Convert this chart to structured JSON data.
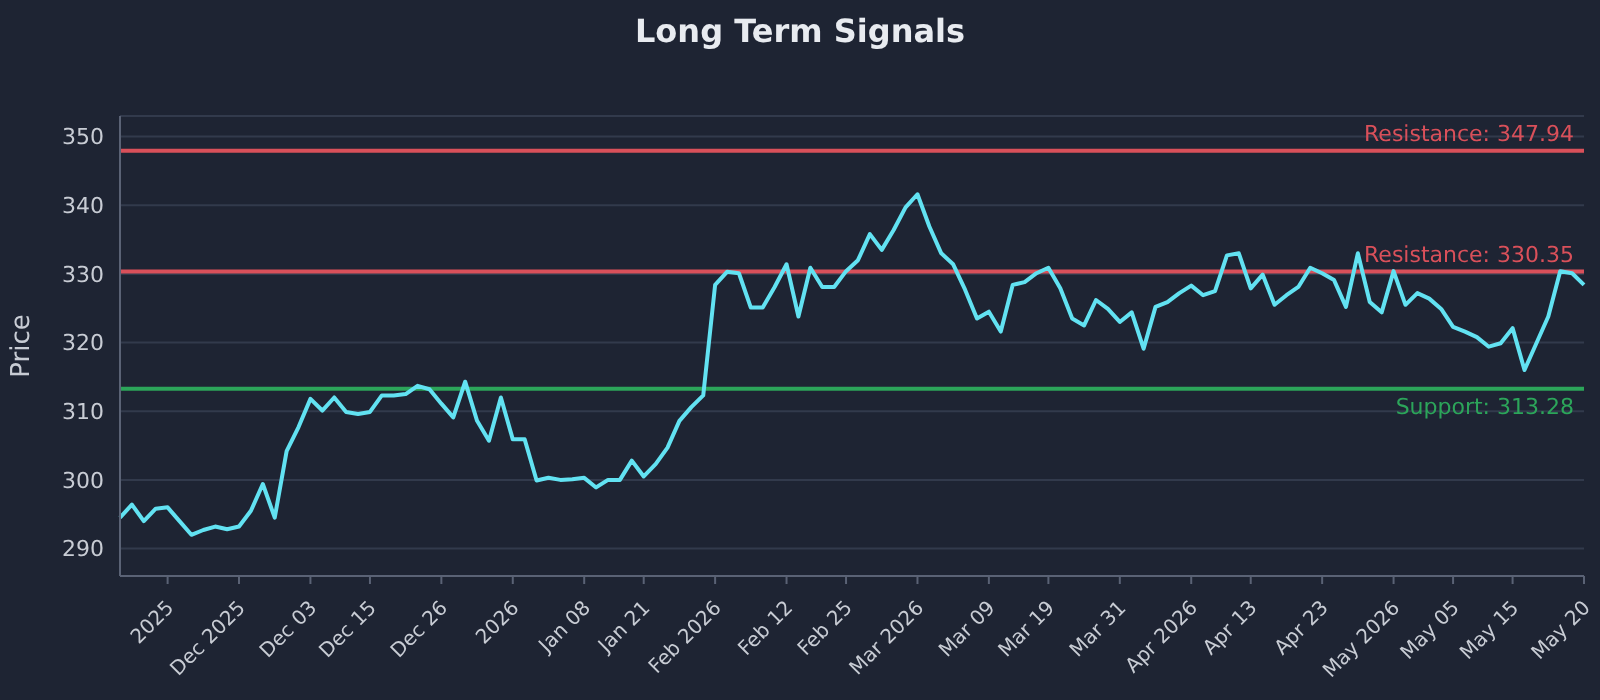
{
  "chart_data": {
    "type": "line",
    "title": "Long Term Signals",
    "ylabel": "Price",
    "categories": [
      null,
      null,
      null,
      null,
      "2025",
      null,
      null,
      null,
      null,
      null,
      "Dec 2025",
      null,
      null,
      null,
      null,
      null,
      "Dec 03",
      null,
      null,
      null,
      null,
      "Dec 15",
      null,
      null,
      null,
      null,
      null,
      "Dec 26",
      null,
      null,
      null,
      null,
      null,
      "2026",
      null,
      null,
      null,
      null,
      null,
      "Jan 08",
      null,
      null,
      null,
      null,
      "Jan 21",
      null,
      null,
      null,
      null,
      null,
      "Feb 2026",
      null,
      null,
      null,
      null,
      null,
      "Feb 12",
      null,
      null,
      null,
      null,
      "Feb 25",
      null,
      null,
      null,
      null,
      null,
      "Mar 2026",
      null,
      null,
      null,
      null,
      null,
      "Mar 09",
      null,
      null,
      null,
      null,
      "Mar 19",
      null,
      null,
      null,
      null,
      null,
      "Mar 31",
      null,
      null,
      null,
      null,
      null,
      "Apr 2026",
      null,
      null,
      null,
      null,
      "Apr 13",
      null,
      null,
      null,
      null,
      null,
      "Apr 23",
      null,
      null,
      null,
      null,
      null,
      "May 2026",
      null,
      null,
      null,
      null,
      "May 05",
      null,
      null,
      null,
      null,
      "May 15",
      null,
      null,
      null,
      null,
      null,
      "May 20"
    ],
    "series": [
      {
        "color": "#62e2f2",
        "values": [
          294.5,
          296.4,
          294.0,
          295.8,
          296.0,
          294.0,
          292.0,
          292.7,
          293.2,
          292.8,
          293.2,
          295.5,
          299.4,
          294.5,
          304.2,
          307.7,
          311.8,
          310.1,
          312.0,
          309.9,
          309.6,
          309.9,
          312.3,
          312.3,
          312.5,
          313.7,
          313.2,
          311.1,
          309.1,
          314.3,
          308.6,
          305.7,
          312.0,
          305.9,
          305.9,
          299.9,
          300.3,
          300.0,
          300.1,
          300.3,
          298.9,
          300.0,
          300.0,
          302.8,
          300.5,
          302.3,
          304.7,
          308.6,
          310.6,
          312.3,
          328.4,
          330.3,
          330.1,
          325.1,
          325.1,
          328.1,
          331.4,
          323.8,
          330.9,
          328.1,
          328.1,
          330.4,
          332.0,
          335.8,
          333.5,
          336.4,
          339.7,
          341.6,
          336.9,
          333.0,
          331.4,
          327.7,
          323.5,
          324.5,
          321.6,
          328.4,
          328.8,
          330.1,
          330.9,
          327.9,
          323.5,
          322.5,
          326.2,
          324.9,
          323.0,
          324.4,
          319.1,
          325.2,
          325.9,
          327.2,
          328.3,
          326.9,
          327.5,
          332.7,
          333.0,
          327.9,
          329.9,
          325.5,
          326.9,
          328.1,
          330.9,
          330.1,
          329.1,
          325.2,
          333.0,
          325.9,
          324.4,
          330.4,
          325.5,
          327.2,
          326.4,
          324.9,
          322.3,
          321.6,
          320.8,
          319.4,
          319.9,
          322.1,
          316.0,
          319.9,
          323.8,
          330.4,
          330.1,
          328.4
        ]
      }
    ],
    "ylim": [
      286,
      353
    ],
    "yticks": [
      290,
      300,
      310,
      320,
      330,
      340,
      350
    ],
    "grid": "y",
    "legend": false,
    "marker": "none",
    "line_style": "solid",
    "ref_lines": [
      {
        "axis": "y",
        "value": 347.94,
        "label": "Resistance: 347.94",
        "color": "#d9505a"
      },
      {
        "axis": "y",
        "value": 330.35,
        "label": "Resistance: 330.35",
        "color": "#d9505a"
      },
      {
        "axis": "y",
        "value": 313.28,
        "label": "Support: 313.28",
        "color": "#2ca55a"
      }
    ]
  }
}
